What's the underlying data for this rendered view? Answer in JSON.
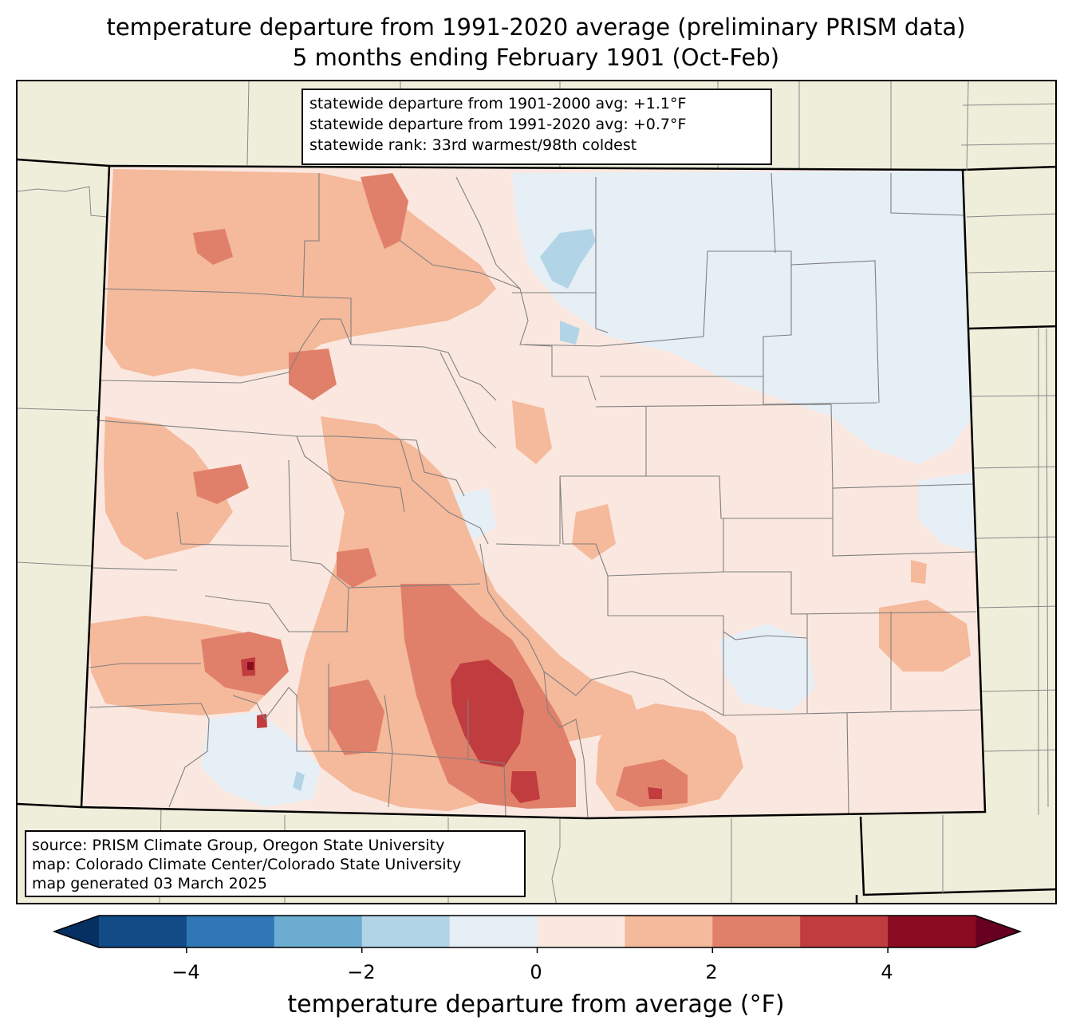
{
  "title": {
    "line1": "temperature departure from 1991-2020 average (preliminary PRISM data)",
    "line2": "5 months ending February 1901 (Oct-Feb)"
  },
  "stats": {
    "line1": "statewide departure from 1901-2000 avg: +1.1°F",
    "line2": "statewide departure from 1991-2020 avg: +0.7°F",
    "line3": "statewide rank: 33rd warmest/98th coldest"
  },
  "source": {
    "line1": "source: PRISM Climate Group, Oregon State University",
    "line2": "map: Colorado Climate Center/Colorado State University",
    "line3": "map generated 03 March 2025"
  },
  "colorbar": {
    "label": "temperature departure from average (°F)",
    "ticks": [
      "−4",
      "−2",
      "0",
      "2",
      "4"
    ],
    "bins": [
      {
        "min": -5,
        "max": -4,
        "color": "#134b87"
      },
      {
        "min": -4,
        "max": -3,
        "color": "#2f78b5"
      },
      {
        "min": -3,
        "max": -2,
        "color": "#6bacd0"
      },
      {
        "min": -2,
        "max": -1,
        "color": "#b2d4e7"
      },
      {
        "min": -1,
        "max": 0,
        "color": "#e6eef6"
      },
      {
        "min": 0,
        "max": 1,
        "color": "#fae8e0"
      },
      {
        "min": 1,
        "max": 2,
        "color": "#f5b99b"
      },
      {
        "min": 2,
        "max": 3,
        "color": "#e0806a"
      },
      {
        "min": 3,
        "max": 4,
        "color": "#c03c3e"
      },
      {
        "min": 4,
        "max": 5,
        "color": "#8a0c22"
      }
    ],
    "under_color": "#053061",
    "over_color": "#67001f"
  },
  "map_colors": {
    "land": "#efeedb",
    "state_fill": "#fae8e0",
    "state_border": "#000000",
    "county_lines": "#808080"
  }
}
